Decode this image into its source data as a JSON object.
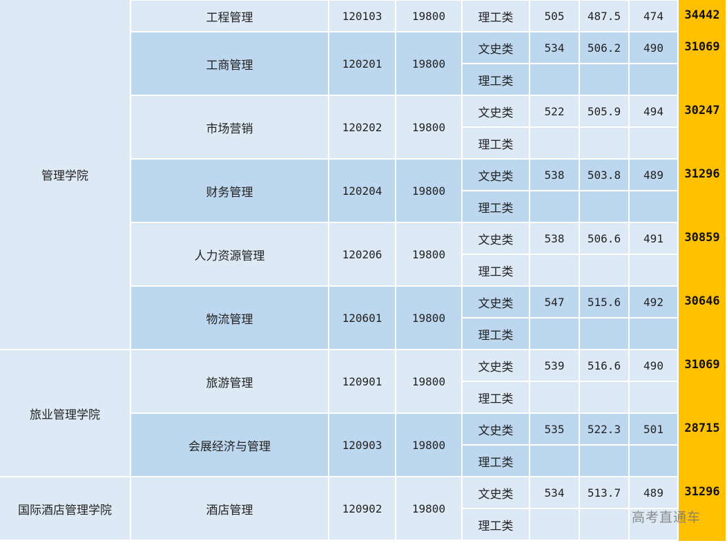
{
  "colors": {
    "light": "#ddeaf6",
    "dark": "#bdd7ee",
    "highlight": "#ffc000"
  },
  "colleges": [
    {
      "name": "管理学院",
      "majors": [
        0,
        1,
        2,
        3,
        4,
        5
      ]
    },
    {
      "name": "旅业管理学院",
      "majors": [
        6,
        7
      ]
    },
    {
      "name": "国际酒店管理学院",
      "majors": [
        8
      ]
    }
  ],
  "majors": [
    {
      "name": "工程管理",
      "code": "120103",
      "fee": "19800",
      "rank": "34442",
      "tracks": [
        {
          "type": "理工类",
          "max": "505",
          "avg": "487.5",
          "min": "474"
        }
      ]
    },
    {
      "name": "工商管理",
      "code": "120201",
      "fee": "19800",
      "rank": "31069",
      "tracks": [
        {
          "type": "文史类",
          "max": "534",
          "avg": "506.2",
          "min": "490"
        },
        {
          "type": "理工类",
          "max": "",
          "avg": "",
          "min": ""
        }
      ]
    },
    {
      "name": "市场营销",
      "code": "120202",
      "fee": "19800",
      "rank": "30247",
      "tracks": [
        {
          "type": "文史类",
          "max": "522",
          "avg": "505.9",
          "min": "494"
        },
        {
          "type": "理工类",
          "max": "",
          "avg": "",
          "min": ""
        }
      ]
    },
    {
      "name": "财务管理",
      "code": "120204",
      "fee": "19800",
      "rank": "31296",
      "tracks": [
        {
          "type": "文史类",
          "max": "538",
          "avg": "503.8",
          "min": "489"
        },
        {
          "type": "理工类",
          "max": "",
          "avg": "",
          "min": ""
        }
      ]
    },
    {
      "name": "人力资源管理",
      "code": "120206",
      "fee": "19800",
      "rank": "30859",
      "tracks": [
        {
          "type": "文史类",
          "max": "538",
          "avg": "506.6",
          "min": "491"
        },
        {
          "type": "理工类",
          "max": "",
          "avg": "",
          "min": ""
        }
      ]
    },
    {
      "name": "物流管理",
      "code": "120601",
      "fee": "19800",
      "rank": "30646",
      "tracks": [
        {
          "type": "文史类",
          "max": "547",
          "avg": "515.6",
          "min": "492"
        },
        {
          "type": "理工类",
          "max": "",
          "avg": "",
          "min": ""
        }
      ]
    },
    {
      "name": "旅游管理",
      "code": "120901",
      "fee": "19800",
      "rank": "31069",
      "tracks": [
        {
          "type": "文史类",
          "max": "539",
          "avg": "516.6",
          "min": "490"
        },
        {
          "type": "理工类",
          "max": "",
          "avg": "",
          "min": ""
        }
      ]
    },
    {
      "name": "会展经济与管理",
      "code": "120903",
      "fee": "19800",
      "rank": "28715",
      "tracks": [
        {
          "type": "文史类",
          "max": "535",
          "avg": "522.3",
          "min": "501"
        },
        {
          "type": "理工类",
          "max": "",
          "avg": "",
          "min": ""
        }
      ]
    },
    {
      "name": "酒店管理",
      "code": "120902",
      "fee": "19800",
      "rank": "31296",
      "tracks": [
        {
          "type": "文史类",
          "max": "534",
          "avg": "513.7",
          "min": "489"
        },
        {
          "type": "理工类",
          "max": "",
          "avg": "",
          "min": ""
        }
      ]
    }
  ],
  "watermark": "高考直通车"
}
